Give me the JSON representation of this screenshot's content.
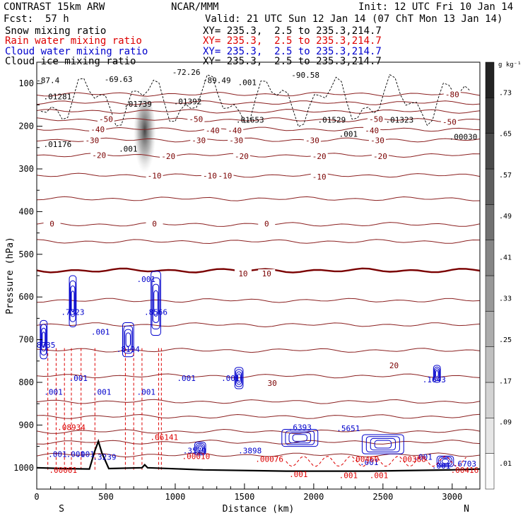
{
  "header": {
    "model": "CONTRAST 15km ARW",
    "center": "NCAR/MMM",
    "init": "Init: 12 UTC Fri 10 Jan 14",
    "fcst_label": "Fcst:",
    "fcst_value": "57 h",
    "valid": "Valid: 21 UTC Sun 12 Jan 14 (07 ChT Mon 13 Jan 14)"
  },
  "fields": [
    {
      "name": "Snow mixing ratio",
      "color": "#000000",
      "xy": "XY= 235.3,  2.5 to 235.3,214.7"
    },
    {
      "name": "Rain water mixing ratio",
      "color": "#dd0000",
      "xy": "XY= 235.3,  2.5 to 235.3,214.7"
    },
    {
      "name": "Cloud water mixing ratio",
      "color": "#0000cc",
      "xy": "XY= 235.3,  2.5 to 235.3,214.7"
    },
    {
      "name": "Cloud ice mixing ratio",
      "color": "#000000",
      "xy": "XY= 235.3,  2.5 to 235.3,214.7"
    }
  ],
  "chart_data": {
    "type": "contour",
    "xlabel": "Distance (km)",
    "ylabel": "Pressure (hPa)",
    "xlim": [
      0,
      3200
    ],
    "ylim": [
      1050,
      50
    ],
    "x_ticks": [
      0,
      500,
      1000,
      1500,
      2000,
      2500,
      3000
    ],
    "x_tick_labels": [
      "0",
      "500",
      "1000",
      "1500",
      "2000",
      "2500",
      "3000"
    ],
    "y_ticks": [
      100,
      200,
      300,
      400,
      500,
      600,
      700,
      800,
      900,
      1000
    ],
    "y_tick_labels": [
      "100",
      "200",
      "300",
      "400",
      "500",
      "600",
      "700",
      "800",
      "900",
      "1000"
    ],
    "left_end_label": "S",
    "right_end_label": "N",
    "colorbar": {
      "unit": "g kg⁻¹",
      "levels": [
        0.01,
        0.09,
        0.17,
        0.25,
        0.33,
        0.41,
        0.49,
        0.57,
        0.65,
        0.73
      ],
      "labels": [
        ".01",
        ".09",
        ".17",
        ".25",
        ".33",
        ".41",
        ".49",
        ".57",
        ".65",
        ".73"
      ]
    },
    "temperature_isotherms": [
      {
        "label": "-80",
        "p": 125
      },
      {
        "label": "-70",
        "p": 145
      },
      {
        "label": "-60",
        "p": 165
      },
      {
        "label": "-50",
        "p": 185
      },
      {
        "label": "-40",
        "p": 207
      },
      {
        "label": "-30",
        "p": 232
      },
      {
        "label": "-20",
        "p": 268
      },
      {
        "label": "-10",
        "p": 315
      },
      {
        "label": "-10",
        "p": 370
      },
      {
        "label": "0",
        "p": 430
      },
      {
        "label": "0",
        "p": 470
      },
      {
        "label": "0",
        "p": 538
      },
      {
        "label": "10",
        "p": 608
      },
      {
        "label": "10",
        "p": 665
      },
      {
        "label": "10",
        "p": 725
      },
      {
        "label": "20",
        "p": 785
      },
      {
        "label": "20",
        "p": 845
      },
      {
        "label": "30",
        "p": 880
      },
      {
        "label": "30",
        "p": 915
      },
      {
        "label": "30",
        "p": 940
      },
      {
        "label": "30",
        "p": 970
      }
    ],
    "isotherm_labels": [
      {
        "text": "-80",
        "x": 3000,
        "p": 125
      },
      {
        "text": "-50",
        "x": 500,
        "p": 183
      },
      {
        "text": "-50",
        "x": 1150,
        "p": 183
      },
      {
        "text": "-50",
        "x": 2450,
        "p": 183
      },
      {
        "text": "-50",
        "x": 2980,
        "p": 190
      },
      {
        "text": "-40",
        "x": 440,
        "p": 207
      },
      {
        "text": "-40",
        "x": 1430,
        "p": 210
      },
      {
        "text": "-40",
        "x": 1270,
        "p": 210
      },
      {
        "text": "-40",
        "x": 2420,
        "p": 210
      },
      {
        "text": "-30",
        "x": 400,
        "p": 233
      },
      {
        "text": "-30",
        "x": 1170,
        "p": 233
      },
      {
        "text": "-30",
        "x": 1440,
        "p": 233
      },
      {
        "text": "-30",
        "x": 1990,
        "p": 233
      },
      {
        "text": "-30",
        "x": 2460,
        "p": 233
      },
      {
        "text": "-20",
        "x": 450,
        "p": 268
      },
      {
        "text": "-20",
        "x": 950,
        "p": 270
      },
      {
        "text": "-20",
        "x": 1480,
        "p": 270
      },
      {
        "text": "-20",
        "x": 2040,
        "p": 270
      },
      {
        "text": "-20",
        "x": 2480,
        "p": 270
      },
      {
        "text": "-10",
        "x": 850,
        "p": 316
      },
      {
        "text": "-10",
        "x": 1250,
        "p": 316
      },
      {
        "text": "-10",
        "x": 1360,
        "p": 316
      },
      {
        "text": "-10",
        "x": 2040,
        "p": 318
      },
      {
        "text": "0",
        "x": 110,
        "p": 428
      },
      {
        "text": "0",
        "x": 850,
        "p": 428
      },
      {
        "text": "0",
        "x": 1660,
        "p": 428
      },
      {
        "text": "10",
        "x": 1490,
        "p": 545
      },
      {
        "text": "10",
        "x": 1660,
        "p": 545
      },
      {
        "text": "20",
        "x": 2580,
        "p": 760
      },
      {
        "text": "30",
        "x": 1700,
        "p": 802
      }
    ],
    "maxima_labels": [
      {
        "text": "-87.4",
        "x": 80,
        "p": 92
      },
      {
        "text": "-69.63",
        "x": 590,
        "p": 90
      },
      {
        "text": "-72.26",
        "x": 1080,
        "p": 73
      },
      {
        "text": "-89.49",
        "x": 1300,
        "p": 92
      },
      {
        "text": "-90.58",
        "x": 1940,
        "p": 80
      },
      {
        "text": ".001",
        "x": 1520,
        "p": 97
      },
      {
        "text": ".01281",
        "x": 150,
        "p": 130
      },
      {
        "text": ".01739",
        "x": 730,
        "p": 148
      },
      {
        "text": ".01392",
        "x": 1090,
        "p": 142
      },
      {
        "text": ".01653",
        "x": 1540,
        "p": 185
      },
      {
        "text": ".01529",
        "x": 2130,
        "p": 185
      },
      {
        "text": ".01323",
        "x": 2620,
        "p": 185
      },
      {
        "text": ".00030",
        "x": 3080,
        "p": 225
      },
      {
        "text": ".01176",
        "x": 150,
        "p": 242
      },
      {
        "text": ".001",
        "x": 660,
        "p": 253
      },
      {
        "text": ".001",
        "x": 2250,
        "p": 218
      },
      {
        "text": ".7323",
        "x": 260,
        "p": 635
      },
      {
        "text": ".8566",
        "x": 860,
        "p": 635
      },
      {
        "text": ".8735",
        "x": 50,
        "p": 712
      },
      {
        "text": ".8194",
        "x": 660,
        "p": 722
      },
      {
        "text": ".1643",
        "x": 2870,
        "p": 793
      },
      {
        "text": ".001",
        "x": 460,
        "p": 682
      },
      {
        "text": ".001",
        "x": 790,
        "p": 558
      },
      {
        "text": ".001",
        "x": 1080,
        "p": 790
      },
      {
        "text": ".001",
        "x": 1400,
        "p": 790
      },
      {
        "text": ".001",
        "x": 300,
        "p": 790
      },
      {
        "text": ".001",
        "x": 120,
        "p": 822
      },
      {
        "text": ".001",
        "x": 470,
        "p": 822
      },
      {
        "text": ".001",
        "x": 790,
        "p": 822
      },
      {
        "text": ".3579",
        "x": 1140,
        "p": 960
      },
      {
        "text": ".3898",
        "x": 1540,
        "p": 960
      },
      {
        "text": ".6393",
        "x": 1900,
        "p": 905
      },
      {
        "text": ".5651",
        "x": 2250,
        "p": 908
      },
      {
        "text": ".6703",
        "x": 3090,
        "p": 990
      },
      {
        "text": ".3239",
        "x": 490,
        "p": 975
      },
      {
        "text": ".001",
        "x": 2400,
        "p": 987
      },
      {
        "text": ".001",
        "x": 2790,
        "p": 975
      },
      {
        "text": ".001",
        "x": 2920,
        "p": 995
      },
      {
        "text": ".001",
        "x": 280,
        "p": 968
      },
      {
        "text": ".08934",
        "x": 250,
        "p": 905
      },
      {
        "text": ".06141",
        "x": 920,
        "p": 928
      },
      {
        "text": ".00010",
        "x": 1150,
        "p": 973
      },
      {
        "text": ".00076",
        "x": 1680,
        "p": 980
      },
      {
        "text": ".00460",
        "x": 2370,
        "p": 980
      },
      {
        "text": ".00388",
        "x": 2710,
        "p": 980
      },
      {
        "text": ".00416",
        "x": 3090,
        "p": 1005
      },
      {
        "text": ".00001",
        "x": 190,
        "p": 1005
      },
      {
        "text": ".001",
        "x": 150,
        "p": 968
      },
      {
        "text": ".001",
        "x": 350,
        "p": 968
      },
      {
        "text": ".001",
        "x": 1890,
        "p": 1015
      },
      {
        "text": ".001",
        "x": 2250,
        "p": 1018
      },
      {
        "text": ".001",
        "x": 2470,
        "p": 1018
      }
    ]
  }
}
